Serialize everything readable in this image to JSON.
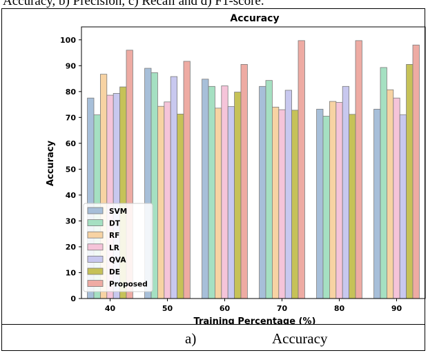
{
  "captions": {
    "top": "Accuracy, b) Precision, c) Recall and d) F1-score.",
    "bottom_letter": "a)",
    "bottom_name": "Accuracy"
  },
  "chart_data": {
    "type": "bar",
    "title": "Accuracy",
    "xlabel": "Training Percentage (%)",
    "ylabel": "Accuracy",
    "ylim": [
      0,
      105
    ],
    "yticks": [
      0,
      10,
      20,
      30,
      40,
      50,
      60,
      70,
      80,
      90,
      100
    ],
    "categories": [
      "40",
      "50",
      "60",
      "70",
      "80",
      "90"
    ],
    "grid": false,
    "legend_position": "lower-left",
    "series": [
      {
        "name": "SVM",
        "color": "#a7bfd9",
        "values": [
          77.5,
          89,
          84.8,
          82,
          73.2,
          73.2
        ]
      },
      {
        "name": "DT",
        "color": "#a5e0c2",
        "values": [
          71,
          87.3,
          82,
          84.3,
          70.5,
          89.3
        ]
      },
      {
        "name": "RF",
        "color": "#f7d3a3",
        "values": [
          86.7,
          74.3,
          73.6,
          74,
          76.2,
          80.7
        ]
      },
      {
        "name": "LR",
        "color": "#f5c4d9",
        "values": [
          78.6,
          76,
          82.2,
          73,
          75.8,
          77.5
        ]
      },
      {
        "name": "QVA",
        "color": "#c8c8ef",
        "values": [
          79.3,
          85.8,
          74.2,
          80.5,
          82,
          71
        ]
      },
      {
        "name": "DE",
        "color": "#c6c258",
        "values": [
          81.8,
          71.3,
          79.8,
          72.8,
          71.2,
          90.5
        ]
      },
      {
        "name": "Proposed",
        "color": "#eeaba3",
        "values": [
          96,
          91.7,
          90.5,
          99.7,
          99.7,
          98
        ]
      }
    ]
  }
}
